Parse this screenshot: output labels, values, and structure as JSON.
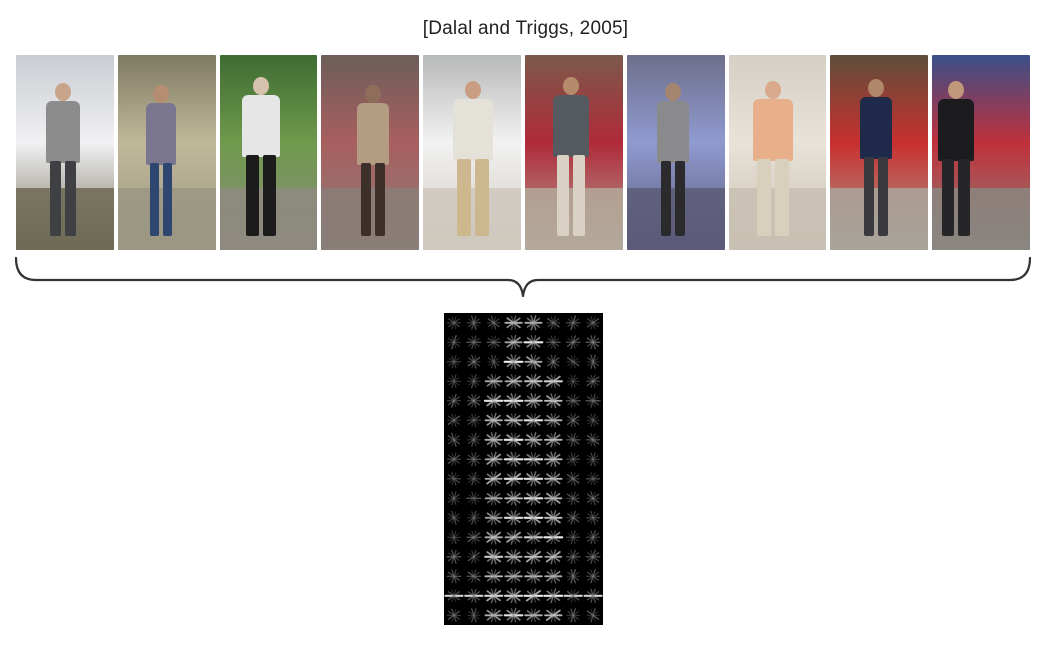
{
  "citation": "[Dalal and Triggs, 2005]",
  "examples": [
    {
      "sky": "#c9ccd2",
      "ground": "#6f6a55",
      "body": "#8c8c8c",
      "legs": "#3f4044",
      "skin": "#c8a58a",
      "accent": "#f1f1f3"
    },
    {
      "sky": "#7e7a62",
      "ground": "#9a9683",
      "body": "#7a7690",
      "legs": "#2f4670",
      "skin": "#b78d72",
      "accent": "#c0b89a"
    },
    {
      "sky": "#3f6b32",
      "ground": "#8e8a80",
      "body": "#e6e6e6",
      "legs": "#1c1c1c",
      "skin": "#d6c2ad",
      "accent": "#6f9a4c"
    },
    {
      "sky": "#6d5e59",
      "ground": "#8a7e78",
      "body": "#b39c82",
      "legs": "#3d2f2a",
      "skin": "#8e6e5b",
      "accent": "#a85f5f"
    },
    {
      "sky": "#b8b9b9",
      "ground": "#cfc8bd",
      "body": "#e4e1d8",
      "legs": "#cdb78f",
      "skin": "#c99e83",
      "accent": "#f2f2f2"
    },
    {
      "sky": "#7b5a4a",
      "ground": "#b3a99a",
      "body": "#555a60",
      "legs": "#d9d2c4",
      "skin": "#b68a6c",
      "accent": "#b02a3a"
    },
    {
      "sky": "#6e6f8a",
      "ground": "#5c5a78",
      "body": "#8a8a8c",
      "legs": "#2b2b2e",
      "skin": "#a4856f",
      "accent": "#8f9ad0"
    },
    {
      "sky": "#d6cfc5",
      "ground": "#c8bfb2",
      "body": "#e8b08a",
      "legs": "#d8d0bd",
      "skin": "#d8a98a",
      "accent": "#e8e2d8"
    },
    {
      "sky": "#5e4e3b",
      "ground": "#a8a49a",
      "body": "#1f2a4a",
      "legs": "#3a3a3e",
      "skin": "#b0876a",
      "accent": "#c8302e"
    },
    {
      "sky": "#3a4f8a",
      "ground": "#8a8680",
      "body": "#1c1c1e",
      "legs": "#262628",
      "skin": "#c0987c",
      "accent": "#c0303a"
    }
  ]
}
